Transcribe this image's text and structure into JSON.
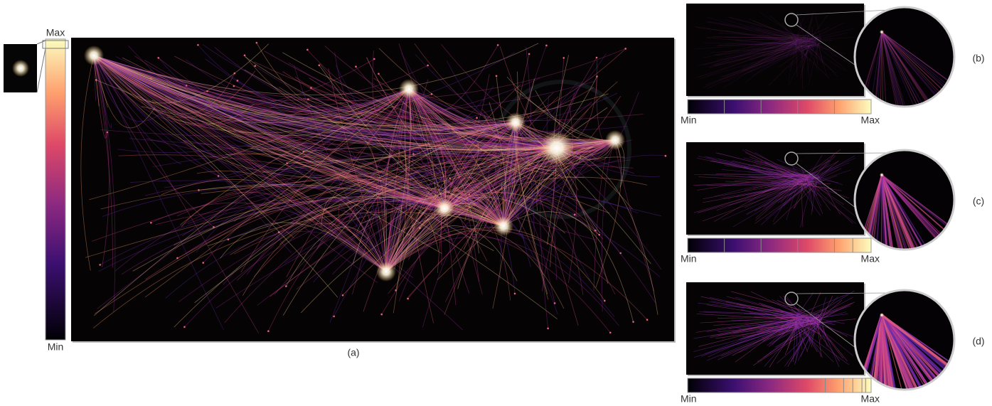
{
  "main_panel": {
    "caption": "(a)",
    "colorbar": {
      "max_label": "Max",
      "min_label": "Min"
    }
  },
  "panels": [
    {
      "caption": "(b)",
      "colorbar": {
        "min_label": "Min",
        "max_label": "Max"
      }
    },
    {
      "caption": "(c)",
      "colorbar": {
        "min_label": "Min",
        "max_label": "Max"
      }
    },
    {
      "caption": "(d)",
      "colorbar": {
        "min_label": "Min",
        "max_label": "Max"
      }
    }
  ]
}
